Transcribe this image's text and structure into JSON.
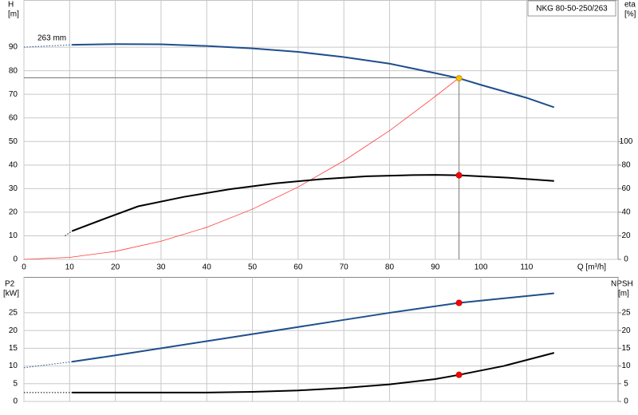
{
  "chart_data": [
    {
      "type": "line",
      "title": "NKG 80-50-250/263",
      "x_label": "Q [m³/h]",
      "y_label": "H",
      "y_unit": "[m]",
      "y2_label": "eta",
      "y2_unit": "[%]",
      "annotation": "263 mm",
      "grid": true,
      "show_xtick_labels": true,
      "xlim": [
        0,
        130
      ],
      "xticks": [
        0,
        10,
        20,
        30,
        40,
        50,
        60,
        70,
        80,
        90,
        100,
        110
      ],
      "ylim": [
        0,
        110
      ],
      "yticks": [
        0,
        10,
        20,
        30,
        40,
        50,
        60,
        70,
        80,
        90
      ],
      "y2lim": [
        0,
        220
      ],
      "y2ticks": [
        0,
        20,
        40,
        60,
        80,
        100
      ],
      "series": [
        {
          "style": "guide",
          "color": "#777777",
          "x": [
            0,
            95.2,
            95.2
          ],
          "values": [
            77,
            77,
            0
          ]
        },
        {
          "style": "thin",
          "color": "#ff3b3b",
          "x": [
            0,
            10,
            20,
            30,
            40,
            50,
            60,
            70,
            80,
            90,
            95.2
          ],
          "values": [
            0,
            0.85,
            3.4,
            7.7,
            13.6,
            21.3,
            30.7,
            41.8,
            54.6,
            69.1,
            77
          ]
        },
        {
          "style": "dotted",
          "color": "#1f4e8c",
          "x": [
            0,
            10.5
          ],
          "values": [
            90,
            91
          ]
        },
        {
          "style": "solid",
          "color": "#1f4e8c",
          "x": [
            10.5,
            20,
            30,
            40,
            50,
            60,
            70,
            80,
            90,
            95.2,
            100,
            110,
            116
          ],
          "values": [
            91,
            91.3,
            91.2,
            90.5,
            89.5,
            88,
            85.8,
            83,
            79,
            76.8,
            74,
            68.5,
            64.5
          ]
        },
        {
          "style": "dotted",
          "color": "#000000",
          "axis": "y2",
          "x": [
            9,
            10.5
          ],
          "values": [
            20,
            24
          ]
        },
        {
          "style": "solid",
          "color": "#000000",
          "axis": "y2",
          "x": [
            10.5,
            18,
            25,
            35,
            45,
            55,
            65,
            75,
            85,
            90,
            95.2,
            105,
            116
          ],
          "values": [
            24,
            35,
            45,
            53,
            59.5,
            64.5,
            68,
            70.5,
            71.5,
            71.7,
            71.3,
            69.5,
            66.5
          ]
        },
        {
          "style": "marker",
          "color": "#ff0000",
          "axis": "y2",
          "x": [
            95.2
          ],
          "values": [
            71.3
          ]
        },
        {
          "style": "marker",
          "color": "#f5c400",
          "x": [
            95.2
          ],
          "values": [
            76.8
          ]
        }
      ]
    },
    {
      "type": "line",
      "y_label": "P2",
      "y_unit": "[kW]",
      "y2_label": "NPSH",
      "y2_unit": "[m]",
      "grid": true,
      "show_xtick_labels": false,
      "xlim": [
        0,
        130
      ],
      "xticks": [
        0,
        10,
        20,
        30,
        40,
        50,
        60,
        70,
        80,
        90,
        100,
        110
      ],
      "ylim": [
        0,
        35
      ],
      "yticks": [
        0,
        5,
        10,
        15,
        20,
        25
      ],
      "y2lim": [
        0,
        35
      ],
      "y2ticks": [
        0,
        5,
        10,
        15,
        20,
        25
      ],
      "series": [
        {
          "style": "dotted",
          "color": "#1f4e8c",
          "x": [
            0,
            10.5
          ],
          "values": [
            9.5,
            11.2
          ]
        },
        {
          "style": "solid",
          "color": "#1f4e8c",
          "x": [
            10.5,
            20,
            30,
            40,
            50,
            60,
            70,
            80,
            95.2,
            116
          ],
          "values": [
            11.2,
            13,
            15,
            17,
            19,
            21,
            23,
            25,
            27.8,
            30.5
          ]
        },
        {
          "style": "dotted",
          "color": "#000000",
          "axis": "y2",
          "x": [
            0,
            10.5
          ],
          "values": [
            2.5,
            2.5
          ]
        },
        {
          "style": "solid",
          "color": "#000000",
          "axis": "y2",
          "x": [
            10.5,
            20,
            40,
            50,
            60,
            70,
            80,
            90,
            95.2,
            105,
            116
          ],
          "values": [
            2.5,
            2.5,
            2.5,
            2.7,
            3.1,
            3.8,
            4.8,
            6.3,
            7.5,
            10,
            13.7
          ]
        },
        {
          "style": "marker",
          "color": "#ff0000",
          "x": [
            95.2
          ],
          "values": [
            27.8
          ]
        },
        {
          "style": "marker",
          "color": "#ff0000",
          "axis": "y2",
          "x": [
            95.2
          ],
          "values": [
            7.5
          ]
        }
      ]
    }
  ]
}
